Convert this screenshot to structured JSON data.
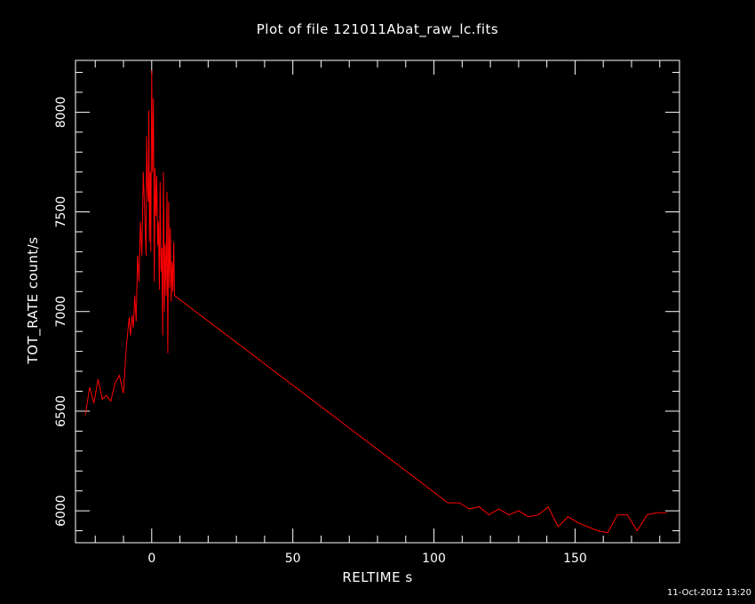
{
  "chart_data": {
    "type": "line",
    "title": "Plot of file 121011Abat_raw_lc.fits",
    "xlabel": "RELTIME   s",
    "ylabel": "TOT_RATE   count/s",
    "xlim": [
      -27,
      187
    ],
    "ylim": [
      5840,
      8260
    ],
    "xticks": [
      0,
      50,
      100,
      150
    ],
    "yticks": [
      6000,
      6500,
      7000,
      7500,
      8000
    ],
    "grid": false,
    "line_color": "#ff0000",
    "axis_color": "#ffffff",
    "background": "#000000",
    "series": [
      {
        "x": [
          -23.5,
          -22,
          -20.5,
          -19,
          -17.5,
          -16,
          -14.5,
          -13,
          -11.5,
          -10,
          -9,
          -8,
          -7.5,
          -7,
          -6.5,
          -6,
          -5.5,
          -5,
          -4.5,
          -4,
          -3.5,
          -3,
          -2.5,
          -2,
          -1.8,
          -1.5,
          -1.2,
          -1,
          -0.8,
          -0.5,
          -0.3,
          0,
          0.3,
          0.6,
          0.9,
          1.2,
          1.5,
          1.8,
          2.1,
          2.4,
          2.7,
          3,
          3.3,
          3.6,
          3.9,
          4.2,
          4.5,
          4.8,
          5.1,
          5.4,
          5.7,
          6,
          6.3,
          6.6,
          6.9,
          7.2,
          7.5,
          7.8,
          8.1,
          105,
          109,
          112.5,
          116,
          119.5,
          123,
          126.5,
          130,
          133.5,
          137,
          140.5,
          144,
          147.5,
          151,
          154.5,
          158,
          161.5,
          165,
          168.5,
          172,
          175.5,
          179,
          182.5
        ],
        "y": [
          6480,
          6620,
          6540,
          6660,
          6560,
          6580,
          6550,
          6640,
          6680,
          6590,
          6820,
          6970,
          6880,
          6980,
          6920,
          7080,
          6950,
          7280,
          7150,
          7450,
          7280,
          7700,
          7500,
          7280,
          7880,
          7620,
          7550,
          8010,
          7350,
          7700,
          7300,
          8210,
          7700,
          8070,
          7150,
          7720,
          7480,
          7680,
          7330,
          7450,
          7110,
          7650,
          7200,
          7320,
          6880,
          7700,
          7000,
          7340,
          7080,
          7600,
          6790,
          7550,
          7120,
          7420,
          7050,
          7250,
          7100,
          7350,
          7080,
          6040,
          6040,
          6010,
          6020,
          5980,
          6010,
          5980,
          6000,
          5970,
          5980,
          6020,
          5920,
          5970,
          5940,
          5920,
          5900,
          5890,
          5980,
          5980,
          5900,
          5980,
          5990,
          5990
        ]
      }
    ]
  },
  "footer": {
    "timestamp": "11-Oct-2012 13:20"
  }
}
